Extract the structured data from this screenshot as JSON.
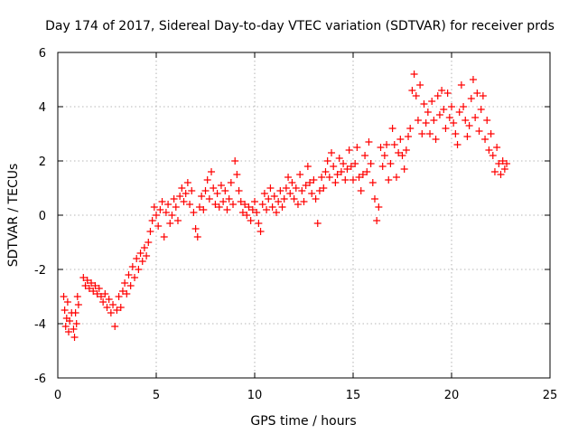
{
  "chart_data": {
    "type": "scatter",
    "title": "Day 174 of 2017, Sidereal Day-to-day VTEC variation (SDTVAR) for receiver prds",
    "xlabel": "GPS time / hours",
    "ylabel": "SDTVAR / TECUs",
    "xlim": [
      0,
      25
    ],
    "ylim": [
      -6,
      6
    ],
    "xticks": [
      0,
      5,
      10,
      15,
      20,
      25
    ],
    "yticks": [
      -6,
      -4,
      -2,
      0,
      2,
      4,
      6
    ],
    "grid": true,
    "marker": "plus",
    "color": "#ff0000",
    "series": [
      {
        "name": "SDTVAR",
        "points": [
          [
            0.3,
            -3.0
          ],
          [
            0.35,
            -3.5
          ],
          [
            0.4,
            -4.1
          ],
          [
            0.45,
            -3.8
          ],
          [
            0.5,
            -3.2
          ],
          [
            0.55,
            -4.3
          ],
          [
            0.6,
            -3.9
          ],
          [
            0.7,
            -3.6
          ],
          [
            0.8,
            -4.2
          ],
          [
            0.85,
            -4.5
          ],
          [
            0.9,
            -3.6
          ],
          [
            1.0,
            -3.0
          ],
          [
            0.95,
            -4.0
          ],
          [
            1.05,
            -3.3
          ],
          [
            1.3,
            -2.3
          ],
          [
            1.4,
            -2.6
          ],
          [
            1.5,
            -2.4
          ],
          [
            1.6,
            -2.7
          ],
          [
            1.7,
            -2.5
          ],
          [
            1.8,
            -2.8
          ],
          [
            1.9,
            -2.6
          ],
          [
            2.0,
            -2.9
          ],
          [
            2.1,
            -2.7
          ],
          [
            2.2,
            -3.0
          ],
          [
            2.3,
            -3.2
          ],
          [
            2.4,
            -2.9
          ],
          [
            2.5,
            -3.4
          ],
          [
            2.6,
            -3.1
          ],
          [
            2.7,
            -3.6
          ],
          [
            2.8,
            -3.3
          ],
          [
            2.9,
            -4.1
          ],
          [
            3.0,
            -3.5
          ],
          [
            3.1,
            -3.0
          ],
          [
            3.2,
            -3.4
          ],
          [
            3.3,
            -2.8
          ],
          [
            3.4,
            -2.5
          ],
          [
            3.5,
            -2.9
          ],
          [
            3.6,
            -2.2
          ],
          [
            3.7,
            -2.6
          ],
          [
            3.8,
            -1.9
          ],
          [
            3.9,
            -2.3
          ],
          [
            4.0,
            -1.6
          ],
          [
            4.1,
            -2.0
          ],
          [
            4.2,
            -1.4
          ],
          [
            4.3,
            -1.7
          ],
          [
            4.4,
            -1.2
          ],
          [
            4.5,
            -1.5
          ],
          [
            4.6,
            -1.0
          ],
          [
            4.7,
            -0.6
          ],
          [
            4.8,
            -0.2
          ],
          [
            4.9,
            0.3
          ],
          [
            5.0,
            0.0
          ],
          [
            5.1,
            -0.4
          ],
          [
            5.2,
            0.2
          ],
          [
            5.3,
            0.5
          ],
          [
            5.4,
            -0.8
          ],
          [
            5.5,
            0.1
          ],
          [
            5.6,
            0.4
          ],
          [
            5.7,
            -0.3
          ],
          [
            5.8,
            0.0
          ],
          [
            5.9,
            0.6
          ],
          [
            6.0,
            0.3
          ],
          [
            6.1,
            -0.2
          ],
          [
            6.2,
            0.7
          ],
          [
            6.3,
            1.0
          ],
          [
            6.4,
            0.5
          ],
          [
            6.5,
            0.8
          ],
          [
            6.6,
            1.2
          ],
          [
            6.7,
            0.4
          ],
          [
            6.8,
            0.9
          ],
          [
            6.9,
            0.1
          ],
          [
            7.0,
            -0.5
          ],
          [
            7.1,
            -0.8
          ],
          [
            7.2,
            0.3
          ],
          [
            7.3,
            0.7
          ],
          [
            7.4,
            0.2
          ],
          [
            7.5,
            0.9
          ],
          [
            7.6,
            1.3
          ],
          [
            7.7,
            0.6
          ],
          [
            7.8,
            1.6
          ],
          [
            7.9,
            1.0
          ],
          [
            8.0,
            0.4
          ],
          [
            8.1,
            0.8
          ],
          [
            8.2,
            0.3
          ],
          [
            8.3,
            1.1
          ],
          [
            8.4,
            0.5
          ],
          [
            8.5,
            0.9
          ],
          [
            8.6,
            0.2
          ],
          [
            8.7,
            0.6
          ],
          [
            8.8,
            1.2
          ],
          [
            8.9,
            0.4
          ],
          [
            9.0,
            2.0
          ],
          [
            9.1,
            1.5
          ],
          [
            9.2,
            0.9
          ],
          [
            9.3,
            0.5
          ],
          [
            9.4,
            0.1
          ],
          [
            9.5,
            0.4
          ],
          [
            9.6,
            0.0
          ],
          [
            9.7,
            0.3
          ],
          [
            9.8,
            -0.2
          ],
          [
            9.9,
            0.2
          ],
          [
            10.0,
            0.5
          ],
          [
            10.1,
            0.1
          ],
          [
            10.2,
            -0.3
          ],
          [
            10.3,
            -0.6
          ],
          [
            10.4,
            0.4
          ],
          [
            10.5,
            0.8
          ],
          [
            10.6,
            0.2
          ],
          [
            10.7,
            0.6
          ],
          [
            10.8,
            1.0
          ],
          [
            10.9,
            0.3
          ],
          [
            11.0,
            0.7
          ],
          [
            11.1,
            0.1
          ],
          [
            11.2,
            0.5
          ],
          [
            11.3,
            0.9
          ],
          [
            11.4,
            0.3
          ],
          [
            11.5,
            0.6
          ],
          [
            11.6,
            1.0
          ],
          [
            11.7,
            1.4
          ],
          [
            11.8,
            0.8
          ],
          [
            11.9,
            1.2
          ],
          [
            12.0,
            0.6
          ],
          [
            12.1,
            1.0
          ],
          [
            12.2,
            0.4
          ],
          [
            12.3,
            1.5
          ],
          [
            12.4,
            0.9
          ],
          [
            12.5,
            0.5
          ],
          [
            12.6,
            1.1
          ],
          [
            12.7,
            1.8
          ],
          [
            12.8,
            1.2
          ],
          [
            12.9,
            0.8
          ],
          [
            13.0,
            1.3
          ],
          [
            13.1,
            0.6
          ],
          [
            13.2,
            -0.3
          ],
          [
            13.3,
            0.9
          ],
          [
            13.4,
            1.4
          ],
          [
            13.5,
            1.0
          ],
          [
            13.6,
            1.6
          ],
          [
            13.7,
            2.0
          ],
          [
            13.8,
            1.4
          ],
          [
            13.9,
            2.3
          ],
          [
            14.0,
            1.8
          ],
          [
            14.1,
            1.2
          ],
          [
            14.2,
            1.5
          ],
          [
            14.3,
            2.1
          ],
          [
            14.4,
            1.6
          ],
          [
            14.5,
            1.9
          ],
          [
            14.6,
            1.3
          ],
          [
            14.7,
            1.7
          ],
          [
            14.8,
            2.4
          ],
          [
            14.9,
            1.8
          ],
          [
            15.0,
            1.3
          ],
          [
            15.1,
            1.9
          ],
          [
            15.2,
            2.5
          ],
          [
            15.3,
            1.4
          ],
          [
            15.4,
            0.9
          ],
          [
            15.5,
            1.5
          ],
          [
            15.6,
            2.2
          ],
          [
            15.7,
            1.6
          ],
          [
            15.8,
            2.7
          ],
          [
            15.9,
            1.9
          ],
          [
            16.0,
            1.2
          ],
          [
            16.1,
            0.6
          ],
          [
            16.2,
            -0.2
          ],
          [
            16.3,
            0.3
          ],
          [
            16.4,
            2.5
          ],
          [
            16.5,
            1.8
          ],
          [
            16.6,
            2.2
          ],
          [
            16.7,
            2.6
          ],
          [
            16.8,
            1.3
          ],
          [
            16.9,
            1.9
          ],
          [
            17.0,
            3.2
          ],
          [
            17.1,
            2.6
          ],
          [
            17.2,
            1.4
          ],
          [
            17.3,
            2.3
          ],
          [
            17.4,
            2.8
          ],
          [
            17.5,
            2.2
          ],
          [
            17.6,
            1.7
          ],
          [
            17.7,
            2.4
          ],
          [
            17.8,
            2.9
          ],
          [
            17.9,
            3.2
          ],
          [
            18.0,
            4.6
          ],
          [
            18.1,
            5.2
          ],
          [
            18.2,
            4.4
          ],
          [
            18.3,
            3.5
          ],
          [
            18.4,
            4.8
          ],
          [
            18.5,
            3.0
          ],
          [
            18.6,
            4.1
          ],
          [
            18.7,
            3.4
          ],
          [
            18.8,
            3.8
          ],
          [
            18.9,
            3.0
          ],
          [
            19.0,
            4.2
          ],
          [
            19.1,
            3.5
          ],
          [
            19.2,
            2.8
          ],
          [
            19.3,
            4.4
          ],
          [
            19.4,
            3.7
          ],
          [
            19.5,
            4.6
          ],
          [
            19.6,
            3.9
          ],
          [
            19.7,
            3.2
          ],
          [
            19.8,
            4.5
          ],
          [
            19.9,
            3.6
          ],
          [
            20.0,
            4.0
          ],
          [
            20.1,
            3.4
          ],
          [
            20.2,
            3.0
          ],
          [
            20.3,
            2.6
          ],
          [
            20.4,
            3.8
          ],
          [
            20.5,
            4.8
          ],
          [
            20.6,
            4.0
          ],
          [
            20.7,
            3.5
          ],
          [
            20.8,
            2.9
          ],
          [
            20.9,
            3.3
          ],
          [
            21.0,
            4.3
          ],
          [
            21.1,
            5.0
          ],
          [
            21.2,
            3.6
          ],
          [
            21.3,
            4.5
          ],
          [
            21.4,
            3.1
          ],
          [
            21.5,
            3.9
          ],
          [
            21.6,
            4.4
          ],
          [
            21.7,
            2.8
          ],
          [
            21.8,
            3.5
          ],
          [
            21.9,
            2.4
          ],
          [
            22.0,
            3.0
          ],
          [
            22.1,
            2.2
          ],
          [
            22.2,
            1.6
          ],
          [
            22.3,
            2.5
          ],
          [
            22.4,
            1.9
          ],
          [
            22.5,
            1.5
          ],
          [
            22.6,
            2.0
          ],
          [
            22.7,
            1.7
          ],
          [
            22.8,
            1.9
          ]
        ]
      }
    ]
  }
}
